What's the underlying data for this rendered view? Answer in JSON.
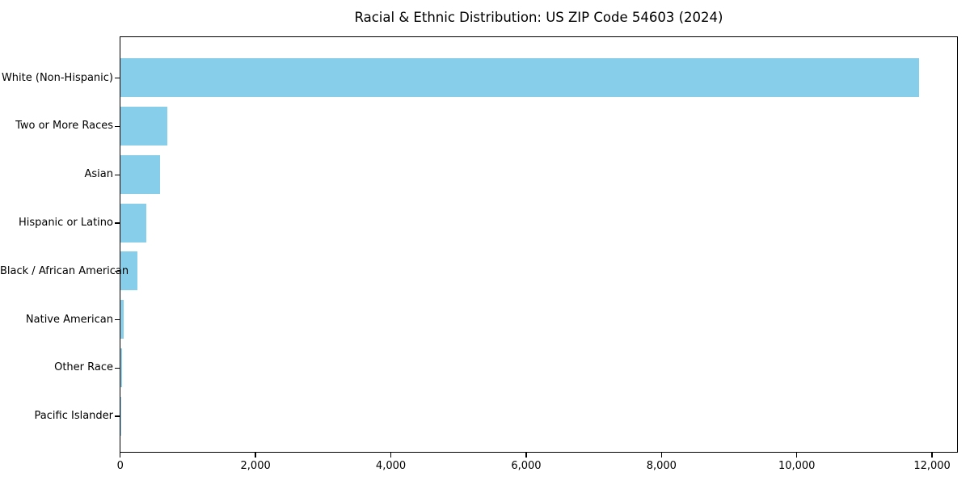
{
  "chart_data": {
    "type": "bar",
    "orientation": "horizontal",
    "title": "Racial & Ethnic Distribution: US ZIP Code 54603 (2024)",
    "categories": [
      "White (Non-Hispanic)",
      "Two or More Races",
      "Asian",
      "Hispanic or Latino",
      "Black / African American",
      "Native American",
      "Other Race",
      "Pacific Islander"
    ],
    "values": [
      11800,
      690,
      590,
      380,
      255,
      48,
      22,
      5
    ],
    "xlabel": "",
    "ylabel": "",
    "xlim": [
      0,
      12390
    ],
    "xticks": [
      0,
      2000,
      4000,
      6000,
      8000,
      10000,
      12000
    ],
    "xtick_labels": [
      "0",
      "2,000",
      "4,000",
      "6,000",
      "8,000",
      "10,000",
      "12,000"
    ],
    "bar_color": "#87CEEB",
    "axis_color": "#000000",
    "background": "#FFFFFF",
    "grid": false,
    "legend": null
  }
}
